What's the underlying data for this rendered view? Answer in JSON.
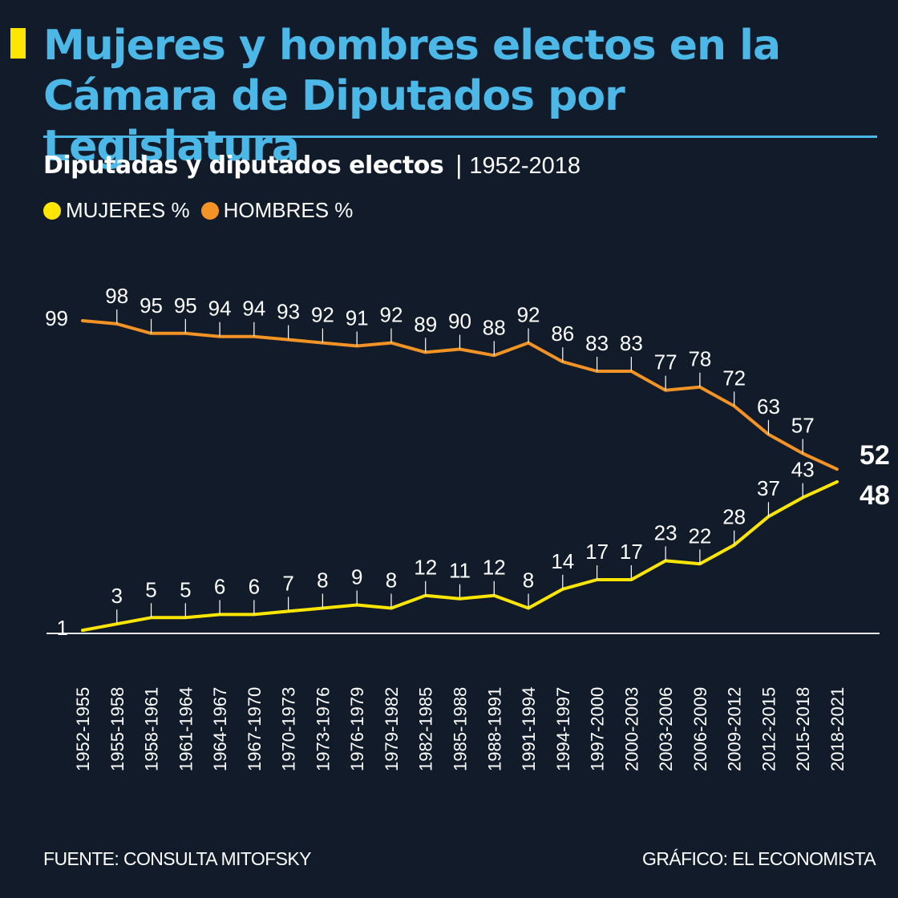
{
  "header": {
    "title": "Mujeres y hombres electos en la Cámara de Diputados por Legislatura",
    "subtitle": "Diputadas y diputados electos",
    "separator": "|",
    "range": "1952-2018"
  },
  "legend": [
    {
      "label": "MUJERES %",
      "color": "#ffe600"
    },
    {
      "label": "HOMBRES %",
      "color": "#f39325"
    }
  ],
  "footer": {
    "source": "FUENTE: CONSULTA MITOFSKY",
    "credit": "GRÁFICO: EL ECONOMISTA"
  },
  "chart_data": {
    "type": "line",
    "title": "Mujeres y hombres electos en la Cámara de Diputados por Legislatura",
    "subtitle": "Diputadas y diputados electos | 1952-2018",
    "xlabel": "",
    "ylabel": "",
    "ylim": [
      0,
      100
    ],
    "grid": false,
    "legend_position": "top-left",
    "x": [
      "1952-1955",
      "1955-1958",
      "1958-1961",
      "1961-1964",
      "1964-1967",
      "1967-1970",
      "1970-1973",
      "1973-1976",
      "1976-1979",
      "1979-1982",
      "1982-1985",
      "1985-1988",
      "1988-1991",
      "1991-1994",
      "1994-1997",
      "1997-2000",
      "2000-2003",
      "2003-2006",
      "2006-2009",
      "2009-2012",
      "2012-2015",
      "2015-2018",
      "2018-2021"
    ],
    "series": [
      {
        "name": "MUJERES %",
        "color": "#ffe600",
        "values": [
          1,
          3,
          5,
          5,
          6,
          6,
          7,
          8,
          9,
          8,
          12,
          11,
          12,
          8,
          14,
          17,
          17,
          23,
          22,
          28,
          37,
          43,
          48
        ],
        "labels": [
          "1",
          "3",
          "5",
          "5",
          "6",
          "6",
          "7",
          "8",
          "9",
          "8",
          "12",
          "11",
          "12",
          "8",
          "14",
          "17",
          "17",
          "23",
          "22",
          "28",
          "37",
          "43",
          "48"
        ]
      },
      {
        "name": "HOMBRES %",
        "color": "#f39325",
        "values": [
          99,
          98,
          95,
          95,
          94,
          94,
          93,
          92,
          91,
          92,
          89,
          90,
          88,
          92,
          86,
          83,
          83,
          77,
          78,
          72,
          63,
          57,
          52
        ],
        "labels": [
          "99",
          "98",
          "95",
          "95",
          "94",
          "94",
          "93",
          "92",
          "91",
          "92",
          "89",
          "90",
          "88",
          "92",
          "86",
          "83",
          "83",
          "77",
          "78",
          "72",
          "63",
          "57",
          "52"
        ]
      }
    ]
  }
}
